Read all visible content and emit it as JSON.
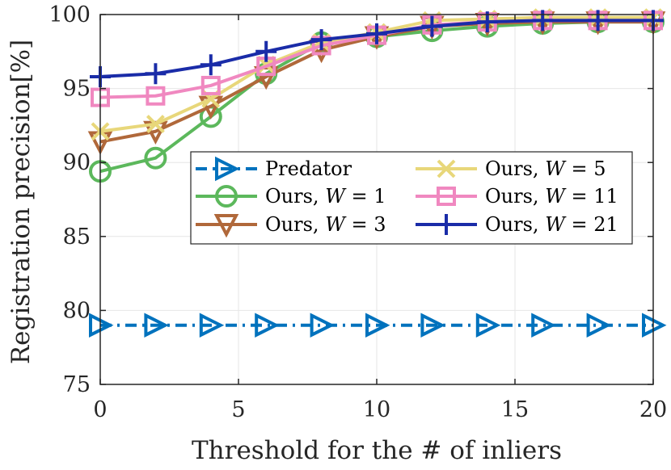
{
  "chart_data": {
    "type": "line",
    "title": "",
    "xlabel": "Threshold for the # of inliers",
    "ylabel": "Registration precision[%]",
    "xlim": [
      0,
      20
    ],
    "ylim": [
      75,
      100
    ],
    "xticks": [
      0,
      5,
      10,
      15,
      20
    ],
    "yticks": [
      75,
      80,
      85,
      90,
      95,
      100
    ],
    "grid": true,
    "legend_position": "center-right",
    "x": [
      0,
      2,
      4,
      6,
      8,
      10,
      12,
      14,
      16,
      18,
      20
    ],
    "series": [
      {
        "name": "Predator",
        "label_prefix": "Predator",
        "label_var": "",
        "label_value": "",
        "color": "#0072BD",
        "marker": "triangle-right",
        "dash": "dashdot",
        "values": [
          79,
          79,
          79,
          79,
          79,
          79,
          79,
          79,
          79,
          79,
          79
        ]
      },
      {
        "name": "Ours, W = 1",
        "label_prefix": "Ours, ",
        "label_var": "W",
        "label_value": " = 1",
        "color": "#5CB85C",
        "marker": "circle",
        "dash": "solid",
        "values": [
          89.4,
          90.3,
          93.1,
          96.0,
          98.1,
          98.5,
          98.9,
          99.2,
          99.4,
          99.5,
          99.5
        ]
      },
      {
        "name": "Ours, W = 3",
        "label_prefix": "Ours, ",
        "label_var": "W",
        "label_value": " = 3",
        "color": "#B0683A",
        "marker": "triangle-down",
        "dash": "solid",
        "values": [
          91.4,
          92.1,
          93.8,
          95.8,
          97.6,
          98.5,
          99.2,
          99.4,
          99.5,
          99.5,
          99.5
        ]
      },
      {
        "name": "Ours, W = 5",
        "label_prefix": "Ours, ",
        "label_var": "W",
        "label_value": " = 5",
        "color": "#E8D77A",
        "marker": "x",
        "dash": "solid",
        "values": [
          92.1,
          92.6,
          94.3,
          96.6,
          98.1,
          98.8,
          99.6,
          99.7,
          99.8,
          99.8,
          99.8
        ]
      },
      {
        "name": "Ours, W = 11",
        "label_prefix": "Ours, ",
        "label_var": "W",
        "label_value": " = 11",
        "color": "#F088C0",
        "marker": "square",
        "dash": "solid",
        "values": [
          94.4,
          94.5,
          95.2,
          96.5,
          97.9,
          98.6,
          99.3,
          99.5,
          99.6,
          99.6,
          99.6
        ]
      },
      {
        "name": "Ours, W = 21",
        "label_prefix": "Ours, ",
        "label_var": "W",
        "label_value": " = 21",
        "color": "#1A2CA8",
        "marker": "plus",
        "dash": "solid",
        "values": [
          95.8,
          96.0,
          96.6,
          97.5,
          98.3,
          98.7,
          99.2,
          99.5,
          99.6,
          99.6,
          99.6
        ]
      }
    ]
  }
}
